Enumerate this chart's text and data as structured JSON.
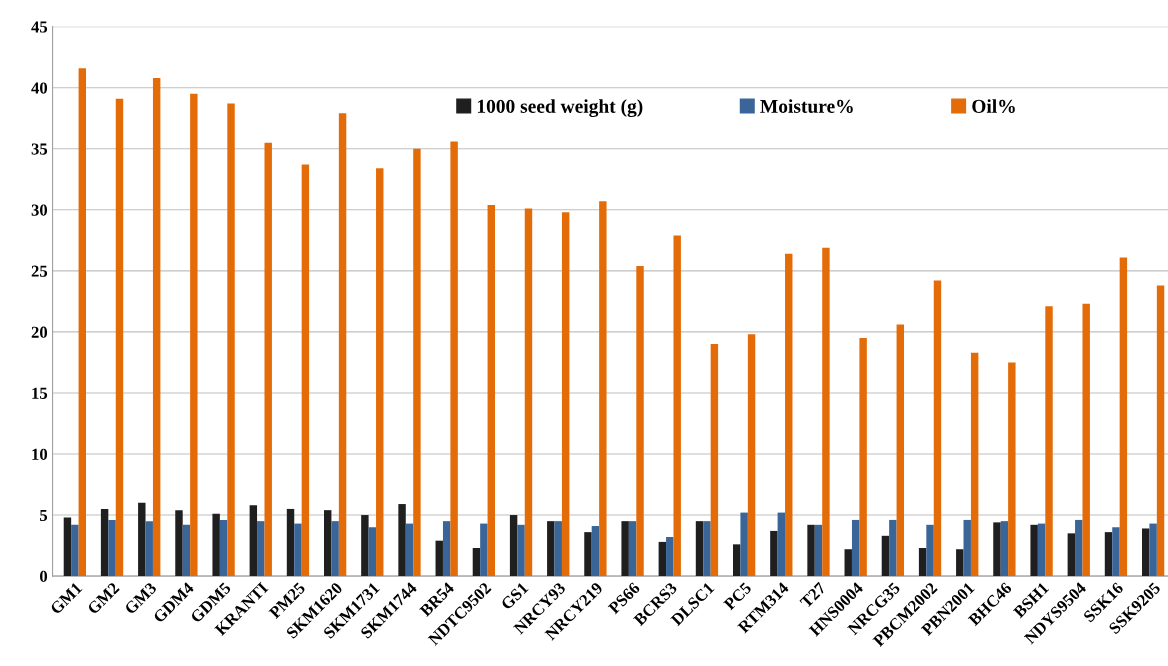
{
  "chart_data": {
    "type": "bar",
    "categories": [
      "GM1",
      "GM2",
      "GM3",
      "GDM4",
      "GDM5",
      "KRANTI",
      "PM25",
      "SKM1620",
      "SKM1731",
      "SKM1744",
      "BR54",
      "NDTC9502",
      "GS1",
      "NRCY93",
      "NRCY219",
      "PS66",
      "BCRS3",
      "DLSC1",
      "PC5",
      "RTM314",
      "T27",
      "HNS0004",
      "NRCG35",
      "PBCM2002",
      "PBN2001",
      "BHC46",
      "BSH1",
      "NDYS9504",
      "SSK16",
      "SSK9205"
    ],
    "series": [
      {
        "name": "1000 seed weight (g)",
        "color": "#1f1f1f",
        "values": [
          4.8,
          5.5,
          6.0,
          5.4,
          5.1,
          5.8,
          5.5,
          5.4,
          5.0,
          5.9,
          2.9,
          2.3,
          5.0,
          4.5,
          3.6,
          4.5,
          2.8,
          4.5,
          2.6,
          3.7,
          4.2,
          2.2,
          3.3,
          2.3,
          2.2,
          4.4,
          4.2,
          3.5,
          3.6,
          3.9
        ]
      },
      {
        "name": "Moisture%",
        "color": "#3a6598",
        "values": [
          4.2,
          4.6,
          4.5,
          4.2,
          4.6,
          4.5,
          4.3,
          4.5,
          4.0,
          4.3,
          4.5,
          4.3,
          4.2,
          4.5,
          4.1,
          4.5,
          3.2,
          4.5,
          5.2,
          5.2,
          4.2,
          4.6,
          4.6,
          4.2,
          4.6,
          4.5,
          4.3,
          4.6,
          4.0,
          4.3
        ]
      },
      {
        "name": "Oil%",
        "color": "#e36c09",
        "values": [
          41.6,
          39.1,
          40.8,
          39.5,
          38.7,
          35.5,
          33.7,
          37.9,
          33.4,
          35.0,
          35.6,
          30.4,
          30.1,
          29.8,
          30.7,
          25.4,
          27.9,
          19.0,
          19.8,
          26.4,
          26.9,
          19.5,
          20.6,
          24.2,
          18.3,
          17.5,
          22.1,
          22.3,
          26.1,
          23.8
        ]
      }
    ],
    "ylim": [
      0,
      45
    ],
    "yticks": [
      0,
      5,
      10,
      15,
      20,
      25,
      30,
      35,
      40,
      45
    ],
    "grid": "y",
    "legend": "top right"
  }
}
